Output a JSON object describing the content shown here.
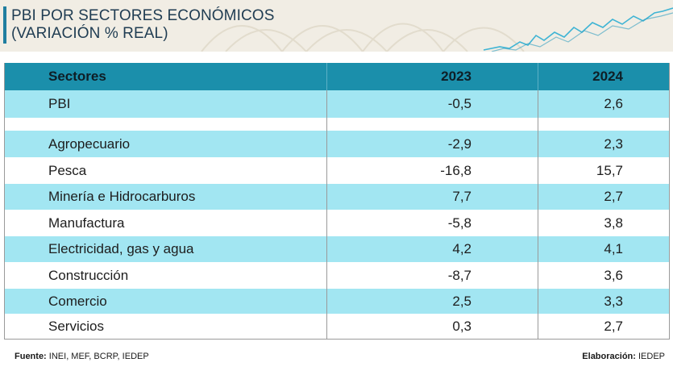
{
  "header": {
    "title_line1": "PBI POR SECTORES ECONÓMICOS",
    "title_line2": "(VARIACIÓN % REAL)"
  },
  "table": {
    "columns": [
      "Sectores",
      "2023",
      "2024"
    ],
    "rows": [
      {
        "sector": "PBI",
        "y2023": "-0,5",
        "y2024": "2,6"
      },
      {
        "sector": "",
        "y2023": "",
        "y2024": ""
      },
      {
        "sector": "Agropecuario",
        "y2023": "-2,9",
        "y2024": "2,3"
      },
      {
        "sector": "Pesca",
        "y2023": "-16,8",
        "y2024": "15,7"
      },
      {
        "sector": "Minería e Hidrocarburos",
        "y2023": "7,7",
        "y2024": "2,7"
      },
      {
        "sector": "Manufactura",
        "y2023": "-5,8",
        "y2024": "3,8"
      },
      {
        "sector": "Electricidad, gas y agua",
        "y2023": "4,2",
        "y2024": "4,1"
      },
      {
        "sector": "Construcción",
        "y2023": "-8,7",
        "y2024": "3,6"
      },
      {
        "sector": "Comercio",
        "y2023": "2,5",
        "y2024": "3,3"
      },
      {
        "sector": "Servicios",
        "y2023": "0,3",
        "y2024": "2,7"
      }
    ]
  },
  "footer": {
    "source_label": "Fuente:",
    "source_value": "INEI, MEF, BCRP, IEDEP",
    "credit_label": "Elaboración:",
    "credit_value": "IEDEP"
  },
  "colors": {
    "header_row": "#1b8fab",
    "stripe": "#a2e6f2",
    "title_text": "#1f3c52",
    "accent_bar": "#1f7ea0"
  }
}
